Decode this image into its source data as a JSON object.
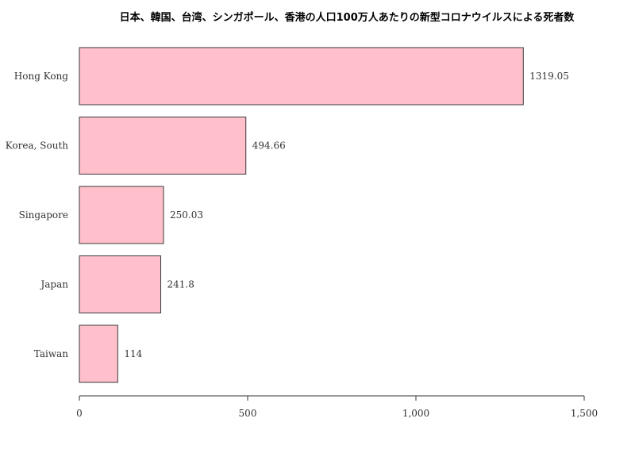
{
  "chart_data": {
    "type": "bar",
    "orientation": "horizontal",
    "title": "日本、韓国、台湾、シンガポール、香港の人口100万人あたりの新型コロナウイルスによる死者数",
    "categories": [
      "Hong Kong",
      "Korea, South",
      "Singapore",
      "Japan",
      "Taiwan"
    ],
    "values": [
      1319.05,
      494.66,
      250.03,
      241.8,
      114
    ],
    "value_labels": [
      "1319.05",
      "494.66",
      "250.03",
      "241.8",
      "114"
    ],
    "xlim": [
      0,
      1500
    ],
    "x_ticks": [
      0,
      500,
      1000,
      1500
    ],
    "x_tick_labels": [
      "0",
      "500",
      "1,000",
      "1,500"
    ],
    "xlabel": "",
    "ylabel": "",
    "grid": false,
    "colors": {
      "bar_fill": "#ffc0cb",
      "bar_stroke": "#3a3a3a"
    }
  }
}
